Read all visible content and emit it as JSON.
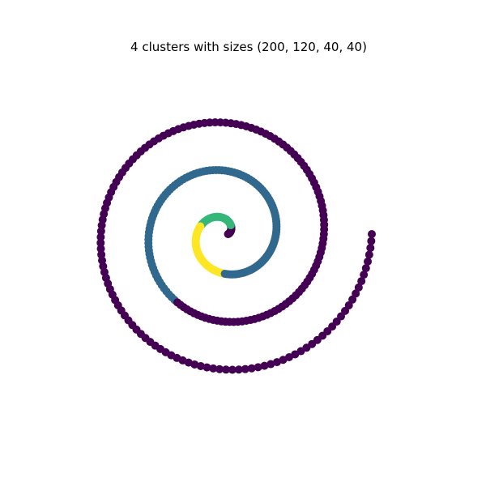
{
  "chart_data": {
    "type": "scatter",
    "title": "4 clusters with sizes (200, 120, 40, 40)",
    "xlabel": "",
    "ylabel": "",
    "axes_visible": false,
    "grid": false,
    "legend": "none",
    "spiral": {
      "turns": 3,
      "start_angle_deg": 0,
      "start_radius": 0.25,
      "end_radius": 10,
      "direction": "counterclockwise",
      "total_points": 400
    },
    "clusters": [
      {
        "label": 0,
        "size": 200,
        "color": "#440154",
        "segments": [
          [
            0,
            20
          ],
          [
            220,
            400
          ]
        ]
      },
      {
        "label": 1,
        "size": 120,
        "color": "#31688e",
        "segments": [
          [
            100,
            220
          ]
        ]
      },
      {
        "label": 2,
        "size": 40,
        "color": "#35b779",
        "segments": [
          [
            20,
            60
          ]
        ]
      },
      {
        "label": 3,
        "size": 40,
        "color": "#fde725",
        "segments": [
          [
            60,
            100
          ]
        ]
      }
    ]
  }
}
